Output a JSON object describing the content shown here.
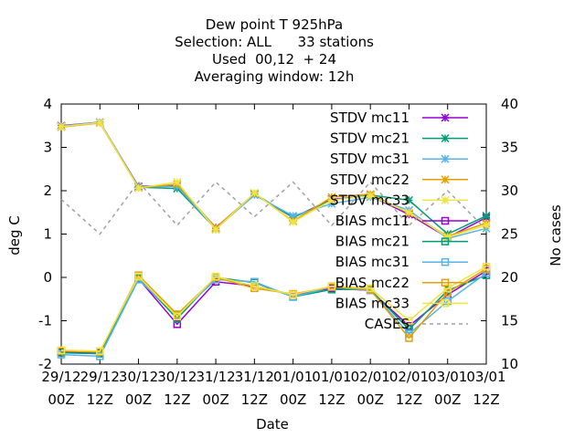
{
  "chart_data": {
    "type": "line",
    "title": [
      "Dew point T 925hPa",
      "Selection: ALL      33 stations",
      "Used  00,12  + 24",
      "Averaging window: 12h"
    ],
    "xlabel": "Date",
    "ylabel": "deg C",
    "y2label": "No cases",
    "ylim": [
      -2,
      4
    ],
    "y2lim": [
      10,
      40
    ],
    "yticks": [
      "-2",
      "-1",
      "0",
      "1",
      "2",
      "3",
      "4"
    ],
    "y2ticks": [
      "10",
      "15",
      "20",
      "25",
      "30",
      "35",
      "40"
    ],
    "categories": [
      [
        "29/12",
        "00Z"
      ],
      [
        "29/12",
        "12Z"
      ],
      [
        "30/12",
        "00Z"
      ],
      [
        "30/12",
        "12Z"
      ],
      [
        "31/12",
        "00Z"
      ],
      [
        "31/12",
        "12Z"
      ],
      [
        "01/01",
        "00Z"
      ],
      [
        "01/01",
        "12Z"
      ],
      [
        "02/01",
        "00Z"
      ],
      [
        "02/01",
        "12Z"
      ],
      [
        "03/01",
        "00Z"
      ],
      [
        "03/01",
        "12Z"
      ]
    ],
    "legend_position": "top-right",
    "series": [
      {
        "name": "STDV mc11",
        "color": "#9400d3",
        "marker": "x",
        "axis": "y1",
        "values": [
          3.5,
          3.58,
          2.1,
          2.12,
          1.15,
          1.92,
          1.38,
          1.8,
          1.88,
          1.45,
          0.92,
          1.38
        ]
      },
      {
        "name": "STDV mc21",
        "color": "#009e73",
        "marker": "x",
        "axis": "y1",
        "values": [
          3.48,
          3.57,
          2.08,
          2.05,
          1.12,
          1.93,
          1.38,
          1.78,
          1.9,
          1.78,
          1.0,
          1.42
        ]
      },
      {
        "name": "STDV mc31",
        "color": "#56b4e9",
        "marker": "x",
        "axis": "y1",
        "values": [
          3.49,
          3.58,
          2.09,
          2.1,
          1.12,
          1.9,
          1.42,
          1.7,
          1.85,
          1.55,
          0.9,
          1.13
        ]
      },
      {
        "name": "STDV mc22",
        "color": "#e69f00",
        "marker": "x",
        "axis": "y1",
        "values": [
          3.47,
          3.56,
          2.07,
          2.15,
          1.14,
          1.94,
          1.3,
          1.85,
          1.92,
          1.48,
          0.95,
          1.25
        ]
      },
      {
        "name": "STDV mc33",
        "color": "#f0e442",
        "marker": "x",
        "axis": "y1",
        "values": [
          3.48,
          3.57,
          2.06,
          2.2,
          1.1,
          1.95,
          1.28,
          1.78,
          1.88,
          1.5,
          0.93,
          1.2
        ]
      },
      {
        "name": "BIAS mc11",
        "color": "#9400d3",
        "marker": "square",
        "axis": "y1",
        "values": [
          -1.72,
          -1.75,
          -0.03,
          -1.08,
          -0.1,
          -0.2,
          -0.4,
          -0.25,
          -0.3,
          -1.12,
          -0.4,
          0.15
        ]
      },
      {
        "name": "BIAS mc21",
        "color": "#009e73",
        "marker": "square",
        "axis": "y1",
        "values": [
          -1.74,
          -1.76,
          -0.02,
          -0.95,
          0.0,
          -0.12,
          -0.45,
          -0.28,
          -0.28,
          -1.2,
          -0.3,
          0.05
        ]
      },
      {
        "name": "BIAS mc31",
        "color": "#56b4e9",
        "marker": "square",
        "axis": "y1",
        "values": [
          -1.78,
          -1.82,
          -0.05,
          -0.88,
          -0.05,
          -0.1,
          -0.45,
          -0.22,
          -0.3,
          -1.3,
          -0.55,
          0.1
        ]
      },
      {
        "name": "BIAS mc22",
        "color": "#e69f00",
        "marker": "square",
        "axis": "y1",
        "values": [
          -1.7,
          -1.72,
          0.05,
          -0.85,
          0.0,
          -0.25,
          -0.38,
          -0.22,
          -0.28,
          -1.4,
          -0.35,
          0.2
        ]
      },
      {
        "name": "BIAS mc33",
        "color": "#f0e442",
        "marker": "square",
        "axis": "y1",
        "values": [
          -1.68,
          -1.7,
          0.02,
          -0.9,
          0.02,
          -0.2,
          -0.4,
          -0.2,
          -0.25,
          -1.0,
          -0.25,
          0.25
        ]
      },
      {
        "name": "CASES",
        "color": "#a0a0a0",
        "marker": "none",
        "dash": true,
        "axis": "y2",
        "values": [
          29,
          25,
          31,
          26,
          31,
          27,
          31,
          26,
          31,
          26,
          30,
          25.5
        ]
      }
    ]
  }
}
